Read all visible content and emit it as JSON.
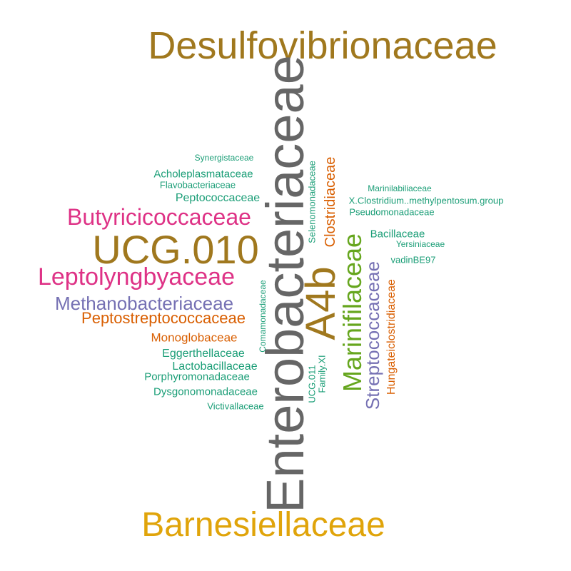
{
  "colors": {
    "gold_brown": "#A0781E",
    "gray": "#666666",
    "gold": "#E0A40A",
    "magenta": "#DE3286",
    "purple": "#7570B3",
    "orange": "#D95F02",
    "green": "#66A61E",
    "teal": "#1B9E77"
  },
  "words": {
    "desulfovibrionaceae": "Desulfovibrionaceae",
    "enterobacteriaceae": "Enterobacteriaceae",
    "barnesiellaceae": "Barnesiellaceae",
    "ucg010": "UCG.010",
    "a4b": "A4b",
    "butyricicoccaceae": "Butyricicoccaceae",
    "leptolyngbyaceae": "Leptolyngbyaceae",
    "methanobacteriaceae": "Methanobacteriaceae",
    "peptostreptococcaceae": "Peptostreptococcaceae",
    "marinifilaceae": "Marinifilaceae",
    "streptococcaceae": "Streptococcaceae",
    "clostridiaceae": "Clostridiaceae",
    "hungateiclostridiaceae": "Hungateiclostridiaceae",
    "monoglobaceae": "Monoglobaceae",
    "eggerthellaceae": "Eggerthellaceae",
    "lactobacillaceae": "Lactobacillaceae",
    "porphyromonadaceae": "Porphyromonadaceae",
    "dysgonomonadaceae": "Dysgonomonadaceae",
    "victivallaceae": "Victivallaceae",
    "synergistaceae": "Synergistaceae",
    "acholeplasmataceae": "Acholeplasmataceae",
    "flavobacteriaceae": "Flavobacteriaceae",
    "peptococcaceae": "Peptococcaceae",
    "selenomonadaceae": "Selenomonadaceae",
    "comamonadaceae": "Comamonadaceae",
    "ucg011": "UCG.011",
    "family_xi": "Family.XI",
    "marinilabiliaceae": "Marinilabiliaceae",
    "x_clostridium": "X.Clostridium..methylpentosum.group",
    "pseudomonadaceae": "Pseudomonadaceae",
    "bacillaceae": "Bacillaceae",
    "yersiniaceae": "Yersiniaceae",
    "vadinbe97": "vadinBE97"
  }
}
